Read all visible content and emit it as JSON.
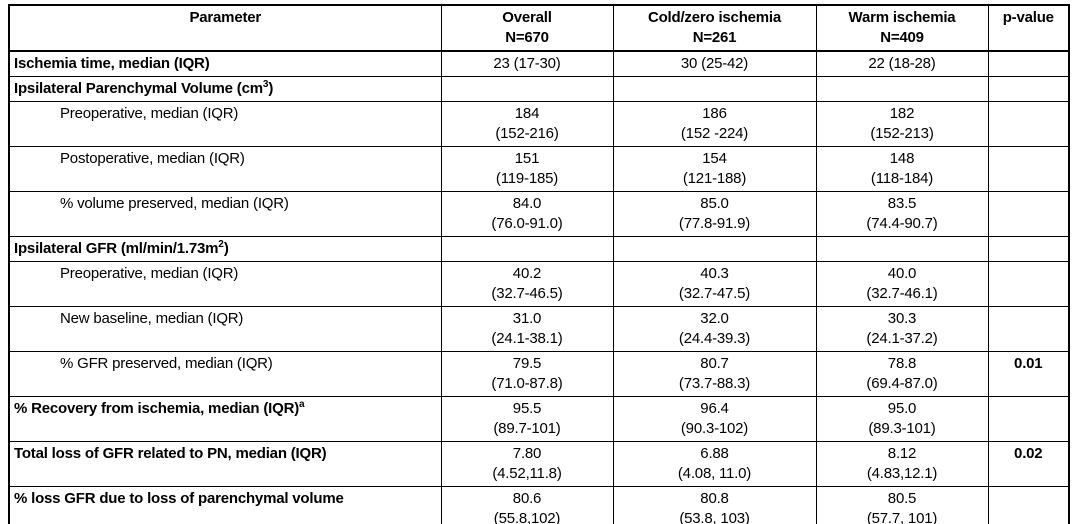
{
  "page": {
    "background_color": "#ffffff",
    "border_color": "#000000",
    "text_color": "#000000"
  },
  "table": {
    "columns": [
      {
        "label": "Parameter",
        "sub": ""
      },
      {
        "label": "Overall",
        "sub": "N=670"
      },
      {
        "label": "Cold/zero ischemia",
        "sub": "N=261"
      },
      {
        "label": "Warm ischemia",
        "sub": "N=409"
      },
      {
        "label": "p-value",
        "sub": ""
      }
    ],
    "rows": [
      {
        "label": "Ischemia time, median (IQR)",
        "sup": "",
        "label_end": "",
        "style": "section",
        "overall": [
          "23 (17-30)"
        ],
        "cold": [
          "30 (25-42)"
        ],
        "warm": [
          "22 (18-28)"
        ],
        "pvalue": ""
      },
      {
        "label": "Ipsilateral Parenchymal Volume (cm",
        "sup": "3",
        "label_end": ")",
        "style": "section",
        "overall": [],
        "cold": [],
        "warm": [],
        "pvalue": ""
      },
      {
        "label": "Preoperative, median (IQR)",
        "sup": "",
        "label_end": "",
        "style": "sub",
        "overall": [
          "184",
          "(152-216)"
        ],
        "cold": [
          "186",
          "(152 -224)"
        ],
        "warm": [
          "182",
          "(152-213)"
        ],
        "pvalue": ""
      },
      {
        "label": "Postoperative, median (IQR)",
        "sup": "",
        "label_end": "",
        "style": "sub",
        "overall": [
          "151",
          "(119-185)"
        ],
        "cold": [
          "154",
          "(121-188)"
        ],
        "warm": [
          "148",
          "(118-184)"
        ],
        "pvalue": ""
      },
      {
        "label": "% volume preserved, median (IQR)",
        "sup": "",
        "label_end": "",
        "style": "sub",
        "overall": [
          "84.0",
          "(76.0-91.0)"
        ],
        "cold": [
          "85.0",
          "(77.8-91.9)"
        ],
        "warm": [
          "83.5",
          "(74.4-90.7)"
        ],
        "pvalue": ""
      },
      {
        "label": "Ipsilateral GFR (ml/min/1.73m",
        "sup": "2",
        "label_end": ")",
        "style": "section",
        "overall": [],
        "cold": [],
        "warm": [],
        "pvalue": ""
      },
      {
        "label": "Preoperative, median (IQR)",
        "sup": "",
        "label_end": "",
        "style": "sub",
        "overall": [
          "40.2",
          "(32.7-46.5)"
        ],
        "cold": [
          "40.3",
          "(32.7-47.5)"
        ],
        "warm": [
          "40.0",
          "(32.7-46.1)"
        ],
        "pvalue": ""
      },
      {
        "label": "New baseline, median (IQR)",
        "sup": "",
        "label_end": "",
        "style": "sub",
        "overall": [
          "31.0",
          "(24.1-38.1)"
        ],
        "cold": [
          "32.0",
          "(24.4-39.3)"
        ],
        "warm": [
          "30.3",
          "(24.1-37.2)"
        ],
        "pvalue": ""
      },
      {
        "label": "% GFR preserved, median (IQR)",
        "sup": "",
        "label_end": "",
        "style": "sub",
        "overall": [
          "79.5",
          "(71.0-87.8)"
        ],
        "cold": [
          "80.7",
          "(73.7-88.3)"
        ],
        "warm": [
          "78.8",
          "(69.4-87.0)"
        ],
        "pvalue": "0.01"
      },
      {
        "label": "% Recovery from ischemia, median (IQR)",
        "sup": "a",
        "label_end": "",
        "style": "section",
        "overall": [
          "95.5",
          "(89.7-101)"
        ],
        "cold": [
          "96.4",
          "(90.3-102)"
        ],
        "warm": [
          "95.0",
          "(89.3-101)"
        ],
        "pvalue": ""
      },
      {
        "label": "Total loss of GFR related to PN, median (IQR)",
        "sup": "",
        "label_end": "",
        "style": "section",
        "overall": [
          "7.80",
          "(4.52,11.8)"
        ],
        "cold": [
          "6.88",
          "(4.08, 11.0)"
        ],
        "warm": [
          "8.12",
          "(4.83,12.1)"
        ],
        "pvalue": "0.02"
      },
      {
        "label": "% loss GFR due to loss of parenchymal volume",
        "sup": "",
        "label_end": "",
        "style": "section",
        "overall": [
          "80.6",
          "(55.8,102)"
        ],
        "cold": [
          "80.8",
          "(53.8, 103)"
        ],
        "warm": [
          "80.5",
          "(57.7, 101)"
        ],
        "pvalue": ""
      }
    ]
  }
}
